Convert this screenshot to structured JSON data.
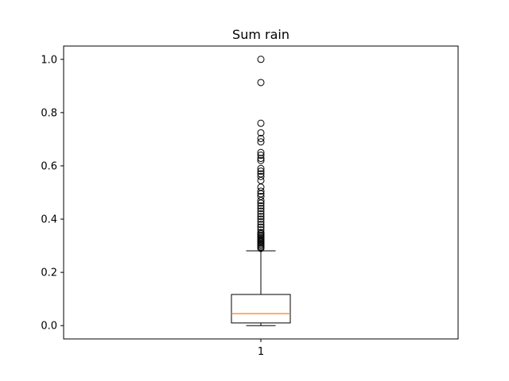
{
  "chart_data": {
    "type": "box",
    "title": "Sum rain",
    "xlabel": "",
    "ylabel": "",
    "ylim": [
      -0.05,
      1.05
    ],
    "yticks": [
      0.0,
      0.2,
      0.4,
      0.6,
      0.8,
      1.0
    ],
    "ytick_labels": [
      "0.0",
      "0.2",
      "0.4",
      "0.6",
      "0.8",
      "1.0"
    ],
    "categories": [
      "1"
    ],
    "box": {
      "whisker_low": 0.0,
      "q1": 0.01,
      "median": 0.045,
      "q3": 0.117,
      "whisker_high": 0.281
    },
    "outliers": [
      1.0,
      0.913,
      0.76,
      0.724,
      0.703,
      0.69,
      0.65,
      0.64,
      0.628,
      0.62,
      0.59,
      0.58,
      0.57,
      0.56,
      0.545,
      0.52,
      0.505,
      0.495,
      0.485,
      0.47,
      0.46,
      0.45,
      0.44,
      0.43,
      0.42,
      0.41,
      0.4,
      0.39,
      0.38,
      0.37,
      0.36,
      0.35,
      0.345,
      0.34,
      0.335,
      0.33,
      0.325,
      0.32,
      0.315,
      0.31,
      0.305,
      0.3,
      0.295,
      0.29
    ],
    "colors": {
      "median": "#ff7f0e",
      "box": "#000000",
      "outlier": "#000000"
    },
    "grid": false
  }
}
